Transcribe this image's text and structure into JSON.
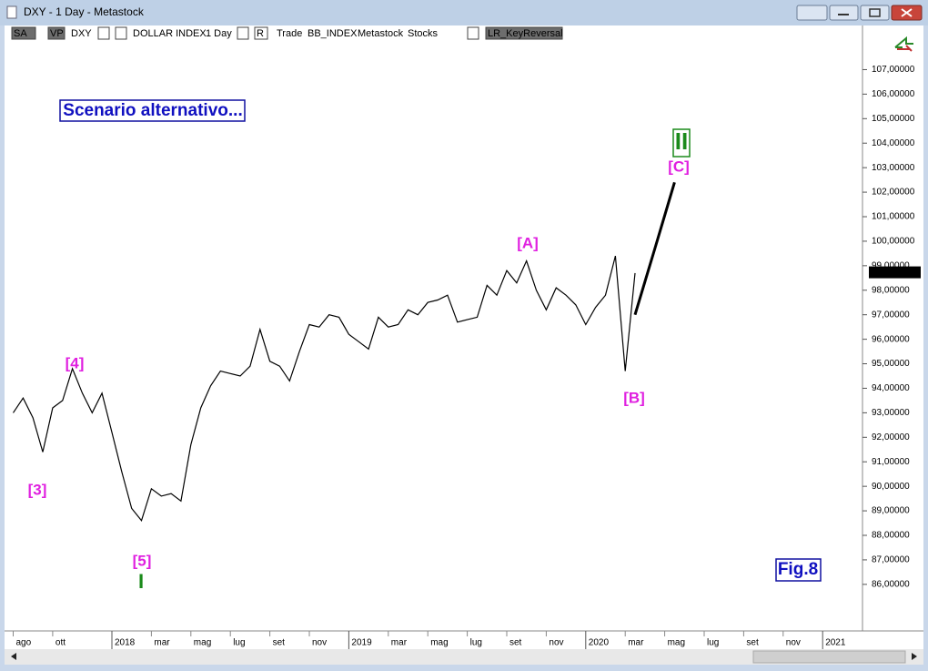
{
  "window": {
    "title": "DXY - 1 Day - Metastock"
  },
  "toolbar": {
    "items": [
      "SA",
      "VP",
      "DXY",
      "DOLLAR INDEX",
      "1 Day",
      "R",
      "Trade",
      "BB_INDEX",
      "Metastock",
      "Stocks",
      "LR_KeyReversal"
    ]
  },
  "chart_data": {
    "type": "line",
    "categories": [
      "ago",
      null,
      null,
      null,
      "ott",
      null,
      null,
      null,
      null,
      null,
      "2018",
      null,
      null,
      null,
      "mar",
      null,
      null,
      null,
      "mag",
      null,
      null,
      null,
      "lug",
      null,
      null,
      null,
      "set",
      null,
      null,
      null,
      "nov",
      null,
      null,
      null,
      "2019",
      null,
      null,
      null,
      "mar",
      null,
      null,
      null,
      "mag",
      null,
      null,
      null,
      "lug",
      null,
      null,
      null,
      "set",
      null,
      null,
      null,
      "nov",
      null,
      null,
      null,
      "2020",
      null,
      null,
      null,
      "mar",
      null,
      null,
      null,
      "mag",
      null,
      null,
      null,
      "lug",
      null,
      null,
      null,
      "set",
      null,
      null,
      null,
      "nov",
      null,
      null,
      null,
      "2021",
      null
    ],
    "series": [
      {
        "color": "#000000",
        "values": [
          93.0,
          93.6,
          92.8,
          91.4,
          93.2,
          93.5,
          94.8,
          93.8,
          93.0,
          93.8,
          92.2,
          90.6,
          89.1,
          88.6,
          89.9,
          89.6,
          89.7,
          89.4,
          91.7,
          93.2,
          94.1,
          94.7,
          94.6,
          94.5,
          94.9,
          96.4,
          95.1,
          94.9,
          94.3,
          95.5,
          96.6,
          96.5,
          97.0,
          96.9,
          96.2,
          95.9,
          95.6,
          96.9,
          96.5,
          96.6,
          97.2,
          97.0,
          97.5,
          97.6,
          97.8,
          96.7,
          96.8,
          96.9,
          98.2,
          97.8,
          98.8,
          98.3,
          99.2,
          98.0,
          97.2,
          98.1,
          97.8,
          97.4,
          96.6,
          97.3,
          97.8,
          99.4,
          94.7,
          98.7,
          null,
          null,
          null,
          null,
          null,
          null,
          null,
          null,
          null,
          null,
          null,
          null,
          null,
          null,
          null,
          null,
          null,
          null,
          null,
          null
        ]
      },
      {
        "color": "#000000",
        "values": [
          null,
          null,
          null,
          null,
          null,
          null,
          null,
          null,
          null,
          null,
          null,
          null,
          null,
          null,
          null,
          null,
          null,
          null,
          null,
          null,
          null,
          null,
          null,
          null,
          null,
          null,
          null,
          null,
          null,
          null,
          null,
          null,
          null,
          null,
          null,
          null,
          null,
          null,
          null,
          null,
          null,
          null,
          null,
          null,
          null,
          null,
          null,
          null,
          null,
          null,
          null,
          null,
          null,
          null,
          null,
          null,
          null,
          null,
          null,
          null,
          null,
          null,
          null,
          97.0,
          98.35,
          99.7,
          101.05,
          102.4,
          null,
          null,
          null,
          null,
          null,
          null,
          null,
          null,
          null,
          null,
          null,
          null,
          null,
          null,
          null,
          null
        ]
      }
    ],
    "ylim": [
      84.1,
      108.8
    ],
    "yticks": [
      {
        "value": 86,
        "label": "86,00000"
      },
      {
        "value": 87,
        "label": "87,00000"
      },
      {
        "value": 88,
        "label": "88,00000"
      },
      {
        "value": 89,
        "label": "89,00000"
      },
      {
        "value": 90,
        "label": "90,00000"
      },
      {
        "value": 91,
        "label": "91,00000"
      },
      {
        "value": 92,
        "label": "92,00000"
      },
      {
        "value": 93,
        "label": "93,00000"
      },
      {
        "value": 94,
        "label": "94,00000"
      },
      {
        "value": 95,
        "label": "95,00000"
      },
      {
        "value": 96,
        "label": "96,00000"
      },
      {
        "value": 97,
        "label": "97,00000"
      },
      {
        "value": 98,
        "label": "98,00000"
      },
      {
        "value": 99,
        "label": "99,00000"
      },
      {
        "value": 100,
        "label": "100,00000"
      },
      {
        "value": 101,
        "label": "101,00000"
      },
      {
        "value": 102,
        "label": "102,00000"
      },
      {
        "value": 103,
        "label": "103,00000"
      },
      {
        "value": 104,
        "label": "104,00000"
      },
      {
        "value": 105,
        "label": "105,00000"
      },
      {
        "value": 106,
        "label": "106,00000"
      },
      {
        "value": 107,
        "label": "107,00000"
      }
    ],
    "last_value": {
      "value": 98.749,
      "label": "98,74900"
    },
    "annotations": [
      "[3]",
      "[4]",
      "[5]",
      "I",
      "[A]",
      "[B]",
      "[C]",
      "II",
      "Scenario alternativo...",
      "Fig.8"
    ]
  }
}
